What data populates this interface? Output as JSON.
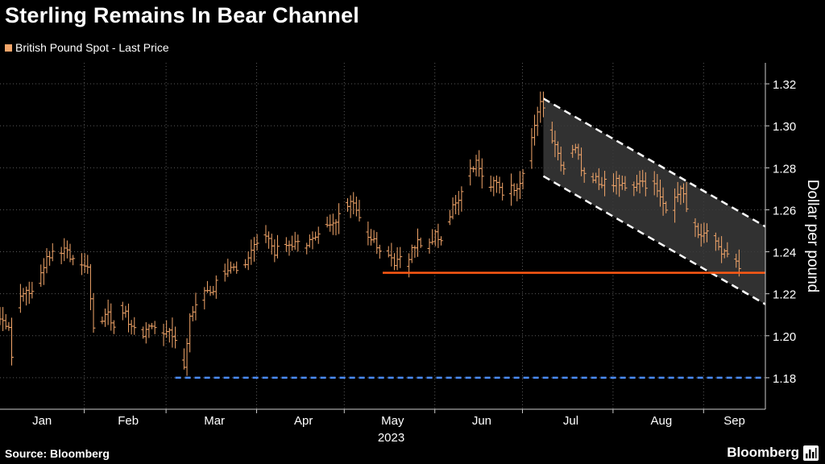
{
  "header": {
    "title": "Sterling Remains In Bear Channel"
  },
  "legend": {
    "label": "British Pound Spot - Last Price",
    "color": "#f3a66a"
  },
  "footer": {
    "source": "Source: Bloomberg",
    "brand": "Bloomberg",
    "brand_icon": "bloomberg-bars-icon"
  },
  "colors": {
    "background": "#000000",
    "grid": "#5a5a5a",
    "bars": "#f3a66a",
    "support_line": "#ff5a14",
    "low_line": "#4a8cff",
    "channel_edge": "#ffffff",
    "channel_fill": "#3a3a3a"
  },
  "chart_data": {
    "type": "ohlc",
    "title": "Sterling Remains In Bear Channel",
    "series_name": "British Pound Spot - Last Price",
    "ylabel": "Dollar per pound",
    "ylim": [
      1.165,
      1.33
    ],
    "yticks": [
      1.18,
      1.2,
      1.22,
      1.24,
      1.26,
      1.28,
      1.3,
      1.32
    ],
    "ytick_labels": [
      "1.18",
      "1.20",
      "1.22",
      "1.24",
      "1.26",
      "1.28",
      "1.30",
      "1.32"
    ],
    "xlim": [
      0,
      262
    ],
    "months": [
      {
        "label": "Jan",
        "start_day": 0
      },
      {
        "label": "Feb",
        "start_day": 31
      },
      {
        "label": "Mar",
        "start_day": 59
      },
      {
        "label": "Apr",
        "start_day": 90
      },
      {
        "label": "May",
        "start_day": 120
      },
      {
        "label": "Jun",
        "start_day": 151
      },
      {
        "label": "Jul",
        "start_day": 181
      },
      {
        "label": "Aug",
        "start_day": 212
      },
      {
        "label": "Sep",
        "start_day": 243
      }
    ],
    "year_label": "2023",
    "daily_close_anchors": [
      [
        0,
        1.208
      ],
      [
        3,
        1.205
      ],
      [
        4,
        1.19
      ],
      [
        6,
        1.215
      ],
      [
        9,
        1.222
      ],
      [
        11,
        1.22
      ],
      [
        14,
        1.23
      ],
      [
        16,
        1.237
      ],
      [
        18,
        1.24
      ],
      [
        21,
        1.241
      ],
      [
        24,
        1.238
      ],
      [
        27,
        1.235
      ],
      [
        30,
        1.232
      ],
      [
        32,
        1.205
      ],
      [
        35,
        1.208
      ],
      [
        37,
        1.212
      ],
      [
        39,
        1.203
      ],
      [
        41,
        1.215
      ],
      [
        43,
        1.21
      ],
      [
        45,
        1.203
      ],
      [
        47,
        1.205
      ],
      [
        49,
        1.2
      ],
      [
        52,
        1.206
      ],
      [
        55,
        1.203
      ],
      [
        58,
        1.202
      ],
      [
        60,
        1.196
      ],
      [
        63,
        1.185
      ],
      [
        65,
        1.208
      ],
      [
        67,
        1.215
      ],
      [
        69,
        1.218
      ],
      [
        71,
        1.223
      ],
      [
        73,
        1.22
      ],
      [
        75,
        1.23
      ],
      [
        77,
        1.228
      ],
      [
        79,
        1.232
      ],
      [
        81,
        1.233
      ],
      [
        84,
        1.235
      ],
      [
        86,
        1.24
      ],
      [
        88,
        1.245
      ],
      [
        90,
        1.25
      ],
      [
        92,
        1.246
      ],
      [
        94,
        1.24
      ],
      [
        97,
        1.242
      ],
      [
        100,
        1.244
      ],
      [
        103,
        1.243
      ],
      [
        106,
        1.245
      ],
      [
        109,
        1.247
      ],
      [
        112,
        1.254
      ],
      [
        115,
        1.256
      ],
      [
        118,
        1.262
      ],
      [
        121,
        1.265
      ],
      [
        124,
        1.252
      ],
      [
        126,
        1.248
      ],
      [
        128,
        1.245
      ],
      [
        131,
        1.24
      ],
      [
        133,
        1.24
      ],
      [
        135,
        1.235
      ],
      [
        137,
        1.238
      ],
      [
        139,
        1.232
      ],
      [
        141,
        1.241
      ],
      [
        143,
        1.244
      ],
      [
        145,
        1.24
      ],
      [
        147,
        1.245
      ],
      [
        149,
        1.248
      ],
      [
        151,
        1.247
      ],
      [
        153,
        1.255
      ],
      [
        155,
        1.262
      ],
      [
        157,
        1.265
      ],
      [
        159,
        1.272
      ],
      [
        161,
        1.28
      ],
      [
        163,
        1.282
      ],
      [
        165,
        1.276
      ],
      [
        167,
        1.27
      ],
      [
        169,
        1.272
      ],
      [
        171,
        1.271
      ],
      [
        173,
        1.263
      ],
      [
        175,
        1.27
      ],
      [
        177,
        1.268
      ],
      [
        179,
        1.276
      ],
      [
        181,
        1.285
      ],
      [
        183,
        1.3
      ],
      [
        185,
        1.312
      ],
      [
        187,
        1.303
      ],
      [
        189,
        1.293
      ],
      [
        191,
        1.286
      ],
      [
        193,
        1.28
      ],
      [
        195,
        1.285
      ],
      [
        197,
        1.291
      ],
      [
        199,
        1.28
      ],
      [
        201,
        1.277
      ],
      [
        203,
        1.276
      ],
      [
        205,
        1.272
      ],
      [
        207,
        1.275
      ],
      [
        209,
        1.271
      ],
      [
        211,
        1.274
      ],
      [
        213,
        1.271
      ],
      [
        215,
        1.269
      ],
      [
        217,
        1.272
      ],
      [
        219,
        1.274
      ],
      [
        221,
        1.27
      ],
      [
        223,
        1.275
      ],
      [
        225,
        1.27
      ],
      [
        227,
        1.263
      ],
      [
        229,
        1.258
      ],
      [
        231,
        1.265
      ],
      [
        233,
        1.27
      ],
      [
        235,
        1.262
      ],
      [
        237,
        1.255
      ],
      [
        239,
        1.25
      ],
      [
        241,
        1.248
      ],
      [
        243,
        1.249
      ],
      [
        245,
        1.246
      ],
      [
        247,
        1.24
      ],
      [
        249,
        1.239
      ],
      [
        251,
        1.236
      ],
      [
        253,
        1.232
      ]
    ],
    "support_line": {
      "y": 1.23,
      "x_start": 131,
      "x_end": 262
    },
    "low_line": {
      "y": 1.18,
      "x_start": 60,
      "x_end": 262
    },
    "channel": {
      "upper": [
        [
          186,
          1.313
        ],
        [
          262,
          1.252
        ]
      ],
      "lower": [
        [
          186,
          1.276
        ],
        [
          262,
          1.215
        ]
      ]
    }
  }
}
